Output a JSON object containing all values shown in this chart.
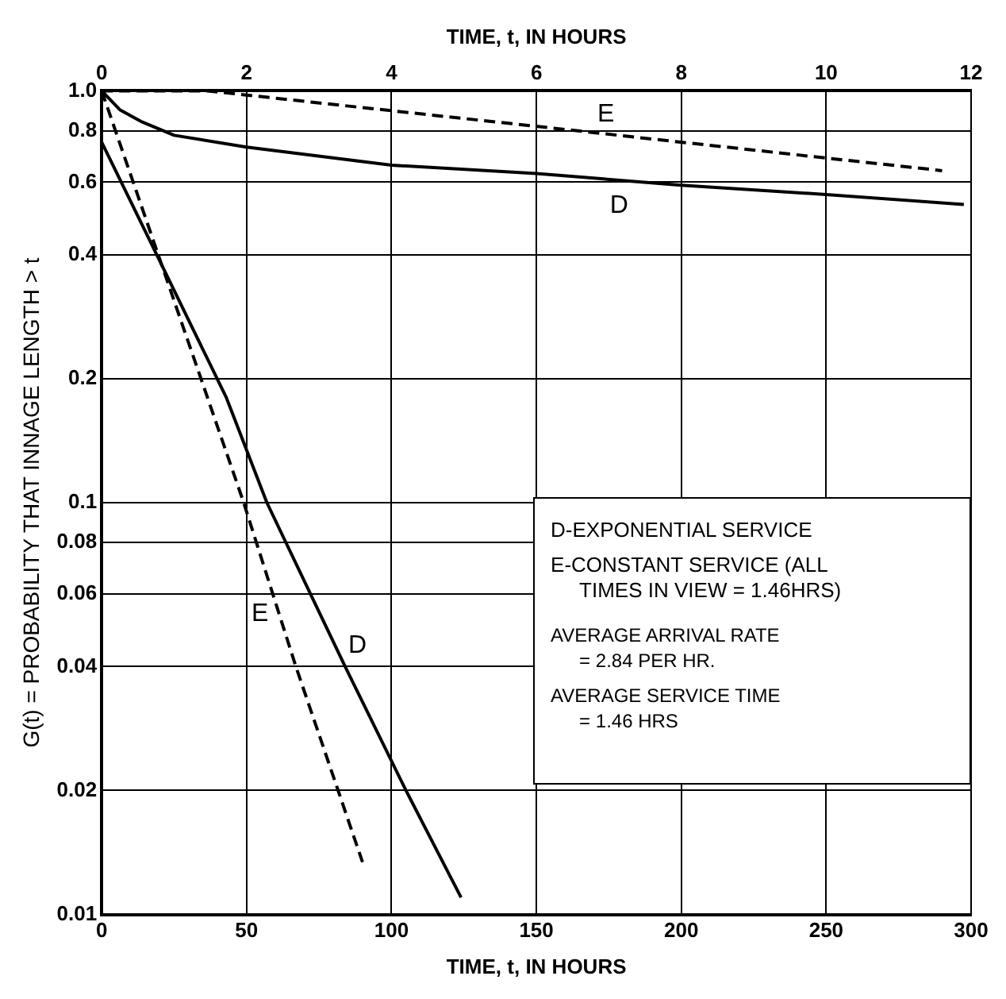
{
  "chart_data": {
    "type": "line",
    "xlabel": "TIME, t, IN HOURS",
    "x2label": "TIME, t, IN HOURS",
    "ylabel": "G(t) = PROBABILITY THAT INNAGE LENGTH > t",
    "series": [
      {
        "name": "D",
        "axis": "x2",
        "color": "#000000",
        "line_style": "solid",
        "x": [
          0,
          0.25,
          0.56,
          1,
          2,
          4,
          6,
          8,
          10,
          11.9
        ],
        "values": [
          1.0,
          0.9,
          0.84,
          0.78,
          0.73,
          0.66,
          0.63,
          0.59,
          0.56,
          0.53
        ]
      },
      {
        "name": "E",
        "axis": "x2",
        "color": "#000000",
        "line_style": "dashed",
        "x": [
          0,
          1.46,
          6,
          11.6
        ],
        "values": [
          1.0,
          1.0,
          0.82,
          0.64
        ]
      },
      {
        "name": "D",
        "color": "#000000",
        "line_style": "solid",
        "x": [
          0,
          19,
          43,
          57,
          84,
          105,
          124
        ],
        "values": [
          0.75,
          0.4,
          0.18,
          0.1,
          0.04,
          0.02,
          0.011
        ]
      },
      {
        "name": "E",
        "color": "#000000",
        "line_style": "dashed",
        "x": [
          0,
          49,
          67,
          90
        ],
        "values": [
          1.0,
          0.1,
          0.04,
          0.0134
        ]
      }
    ],
    "xlim": [
      0,
      300
    ],
    "xticks": [
      0,
      50,
      100,
      150,
      200,
      250,
      300
    ],
    "x2lim": [
      0,
      12
    ],
    "x2ticks": [
      0,
      2,
      4,
      6,
      8,
      10,
      12
    ],
    "log": "y",
    "ylim": [
      0.01,
      1
    ],
    "yticks": [
      0.01,
      0.02,
      0.04,
      0.06,
      0.08,
      0.1,
      0.2,
      0.4,
      0.6,
      0.8,
      {
        "value": 1,
        "label": "1.0"
      }
    ],
    "grid": true,
    "legend": false,
    "marker": "none",
    "annotations": [
      "D-EXPONENTIAL SERVICE",
      "E-CONSTANT SERVICE (ALL\nTIMES IN VIEW = 1.46HRS)",
      "AVERAGE ARRIVAL RATE\n= 2.84 PER HR.",
      "AVERAGE SERVICE TIME\n= 1.46 HRS"
    ]
  }
}
